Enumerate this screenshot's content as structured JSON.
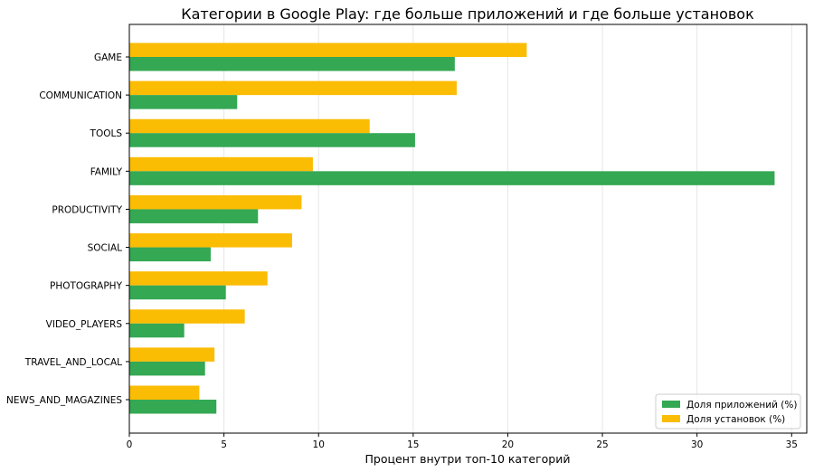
{
  "chart_data": {
    "type": "bar",
    "orientation": "horizontal",
    "title": "Категории в Google Play: где больше приложений и где больше установок",
    "xlabel": "Процент внутри топ-10 категорий",
    "ylabel": "",
    "xlim": [
      0,
      35.8
    ],
    "xticks": [
      0,
      5,
      10,
      15,
      20,
      25,
      30,
      35
    ],
    "grid": "vertical",
    "legend_position": "bottom-right",
    "categories": [
      "GAME",
      "COMMUNICATION",
      "TOOLS",
      "FAMILY",
      "PRODUCTIVITY",
      "SOCIAL",
      "PHOTOGRAPHY",
      "VIDEO_PLAYERS",
      "TRAVEL_AND_LOCAL",
      "NEWS_AND_MAGAZINES"
    ],
    "series": [
      {
        "name": "Доля приложений (%)",
        "color": "#34a853",
        "values": [
          17.2,
          5.7,
          15.1,
          34.1,
          6.8,
          4.3,
          5.1,
          2.9,
          4.0,
          4.6
        ]
      },
      {
        "name": "Доля установок (%)",
        "color": "#fbbc04",
        "values": [
          21.0,
          17.3,
          12.7,
          9.7,
          9.1,
          8.6,
          7.3,
          6.1,
          4.5,
          3.7
        ]
      }
    ]
  }
}
